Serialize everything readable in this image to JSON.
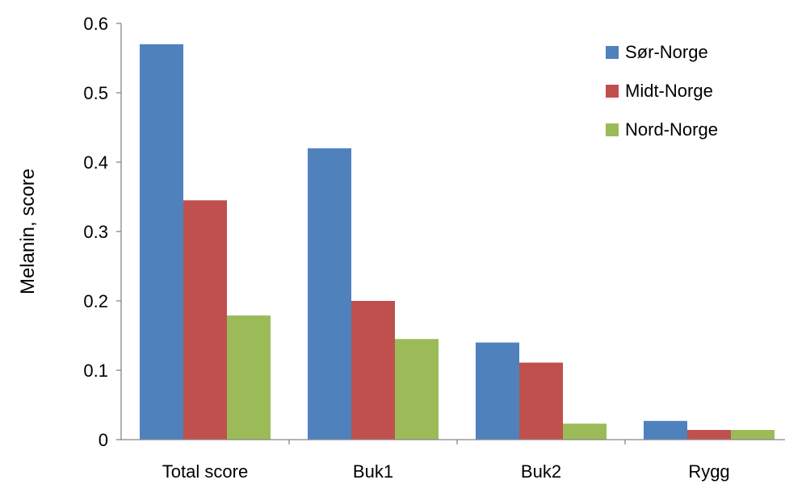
{
  "chart_data": {
    "type": "bar",
    "categories": [
      "Total score",
      "Buk1",
      "Buk2",
      "Rygg"
    ],
    "series": [
      {
        "name": "Sør-Norge",
        "color": "#4F81BD",
        "values": [
          0.57,
          0.42,
          0.14,
          0.027
        ]
      },
      {
        "name": "Midt-Norge",
        "color": "#C0504D",
        "values": [
          0.345,
          0.2,
          0.111,
          0.014
        ]
      },
      {
        "name": "Nord-Norge",
        "color": "#9BBB59",
        "values": [
          0.179,
          0.145,
          0.023,
          0.014
        ]
      }
    ],
    "ylabel": "Melanin, score",
    "ylim": [
      0,
      0.6
    ],
    "yticks": [
      0,
      0.1,
      0.2,
      0.3,
      0.4,
      0.5,
      0.6
    ],
    "ytick_labels": [
      "0",
      "0.1",
      "0.2",
      "0.3",
      "0.4",
      "0.5",
      "0.6"
    ],
    "grid": false,
    "legend_position": "top-right"
  }
}
